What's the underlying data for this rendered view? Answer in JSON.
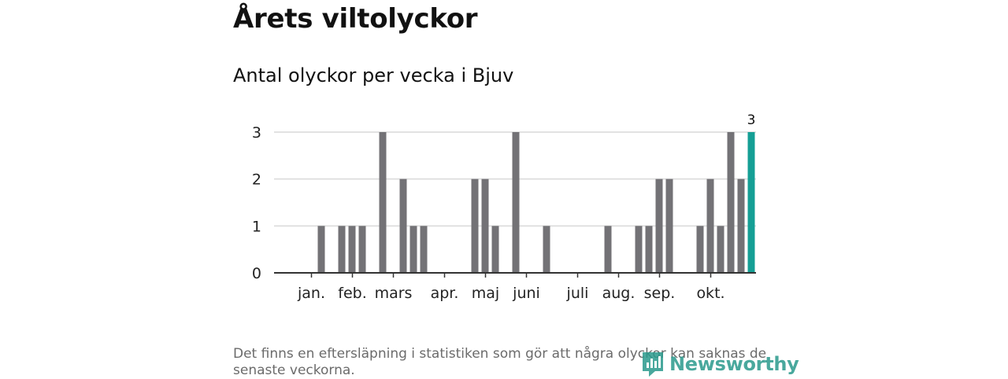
{
  "title": "Årets viltolyckor",
  "subtitle": "Antal olyckor per vecka i Bjuv",
  "footnote": "Det finns en eftersläpning i statistiken som gör att några olyckor kan saknas de senaste veckorna.",
  "logo": {
    "text": "Newsworthy",
    "icon": "newsworthy-logo-icon"
  },
  "colors": {
    "bar": "#737276",
    "highlight": "#159f95",
    "grid": "#d9d9d9",
    "axis": "#333333"
  },
  "chart_data": {
    "type": "bar",
    "title": "Antal olyckor per vecka i Bjuv",
    "xlabel": "",
    "ylabel": "",
    "ylim": [
      0,
      3
    ],
    "yticks": [
      0,
      1,
      2,
      3
    ],
    "grid": true,
    "x": [
      1,
      2,
      3,
      4,
      5,
      6,
      7,
      8,
      9,
      10,
      11,
      12,
      13,
      14,
      15,
      16,
      17,
      18,
      19,
      20,
      21,
      22,
      23,
      24,
      25,
      26,
      27,
      28,
      29,
      30,
      31,
      32,
      33,
      34,
      35,
      36,
      37,
      38,
      39,
      40,
      41,
      42,
      43,
      44,
      45,
      46
    ],
    "values": [
      0,
      0,
      0,
      1,
      0,
      1,
      1,
      1,
      0,
      3,
      0,
      2,
      1,
      1,
      0,
      0,
      0,
      0,
      2,
      2,
      1,
      0,
      3,
      0,
      0,
      1,
      0,
      0,
      0,
      0,
      0,
      1,
      0,
      0,
      1,
      1,
      2,
      2,
      0,
      0,
      1,
      2,
      1,
      3,
      2,
      3
    ],
    "highlight_index": 45,
    "highlight_label": "3",
    "month_labels": [
      {
        "label": "jan.",
        "week": 3.5
      },
      {
        "label": "feb.",
        "week": 7.5
      },
      {
        "label": "mars",
        "week": 11.5
      },
      {
        "label": "apr.",
        "week": 16.5
      },
      {
        "label": "maj",
        "week": 20.5
      },
      {
        "label": "juni",
        "week": 24.5
      },
      {
        "label": "juli",
        "week": 29.5
      },
      {
        "label": "aug.",
        "week": 33.5
      },
      {
        "label": "sep.",
        "week": 37.5
      },
      {
        "label": "okt.",
        "week": 42.5
      }
    ]
  }
}
